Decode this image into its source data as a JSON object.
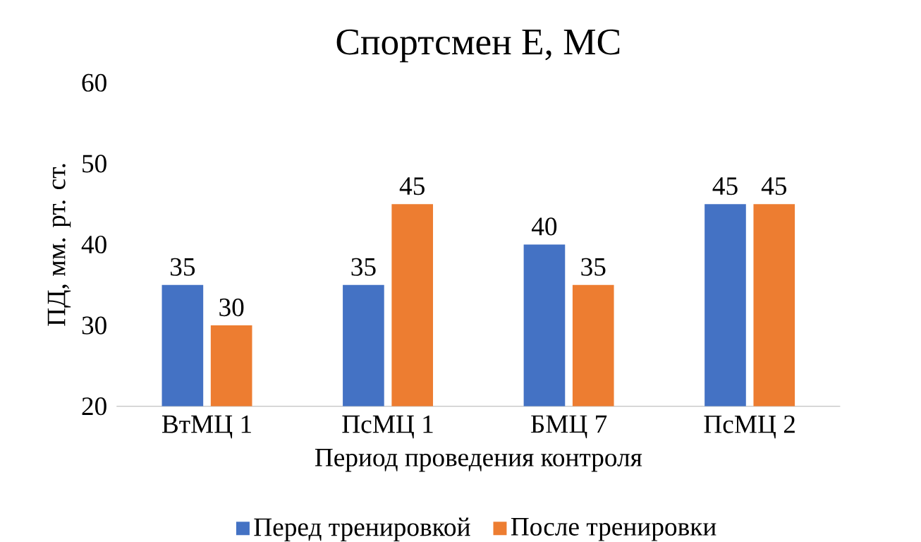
{
  "chart_data": {
    "type": "bar",
    "title": "Спортсмен Е, МС",
    "xlabel": "Период проведения контроля",
    "ylabel": "ПД, мм. рт. ст.",
    "categories": [
      "ВтМЦ 1",
      "ПсМЦ 1",
      "БМЦ 7",
      "ПсМЦ 2"
    ],
    "series": [
      {
        "name": "Перед тренировкой",
        "color": "#4472c4",
        "values": [
          35,
          35,
          40,
          45
        ]
      },
      {
        "name": "После тренировки",
        "color": "#ed7d31",
        "values": [
          30,
          45,
          35,
          45
        ]
      }
    ],
    "ylim": [
      20,
      60
    ],
    "yticks": [
      20,
      30,
      40,
      50,
      60
    ],
    "data_labels": true,
    "legend": "bottom"
  }
}
